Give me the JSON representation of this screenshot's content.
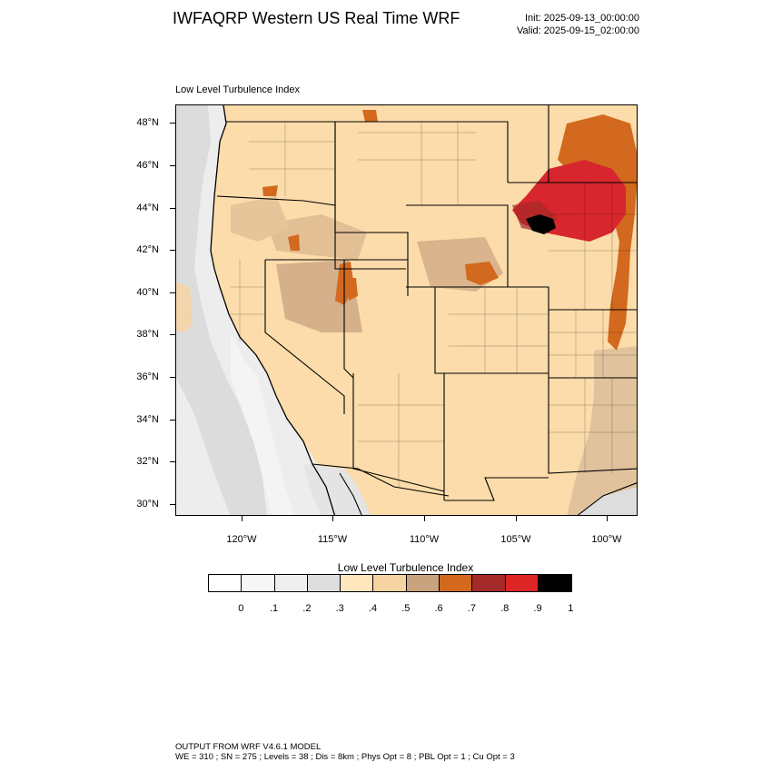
{
  "header": {
    "title": "IWFAQRP Western US Real Time WRF",
    "init": "Init: 2025-09-13_00:00:00",
    "valid": "Valid: 2025-09-15_02:00:00"
  },
  "panel": {
    "title": "Low Level Turbulence Index"
  },
  "map": {
    "lat_labels": [
      "48°N",
      "46°N",
      "44°N",
      "42°N",
      "40°N",
      "38°N",
      "36°N",
      "34°N",
      "32°N",
      "30°N"
    ],
    "lon_labels": [
      "120°W",
      "115°W",
      "110°W",
      "105°W",
      "100°W"
    ],
    "colors": {
      "background": "#fbdcaa",
      "pale": "#ffe6bd",
      "tan": "#e9c69a",
      "brown": "#c9a27e",
      "orange": "#d2691e",
      "darkred": "#b22222",
      "red": "#d8262e",
      "black": "#000000",
      "ocean_light": "#e9e9e9",
      "ocean_mid": "#d8d8d8",
      "ocean_pale": "#f4f4f4"
    }
  },
  "legend": {
    "title": "Low Level Turbulence Index",
    "colors": [
      "#ffffff",
      "#f7f7f7",
      "#eeeeee",
      "#dddddd",
      "#ffe6bd",
      "#f6d3a2",
      "#c9a27e",
      "#d2691e",
      "#a52a2a",
      "#dc2626",
      "#000000"
    ],
    "labels": [
      "0",
      ".1",
      ".2",
      ".3",
      ".4",
      ".5",
      ".6",
      ".7",
      ".8",
      ".9",
      "1"
    ]
  },
  "footer": {
    "line1": "OUTPUT FROM WRF V4.6.1 MODEL",
    "line2": "WE = 310 ; SN = 275 ; Levels = 38 ; Dis = 8km ; Phys Opt = 8 ; PBL Opt = 1 ; Cu Opt = 3"
  }
}
